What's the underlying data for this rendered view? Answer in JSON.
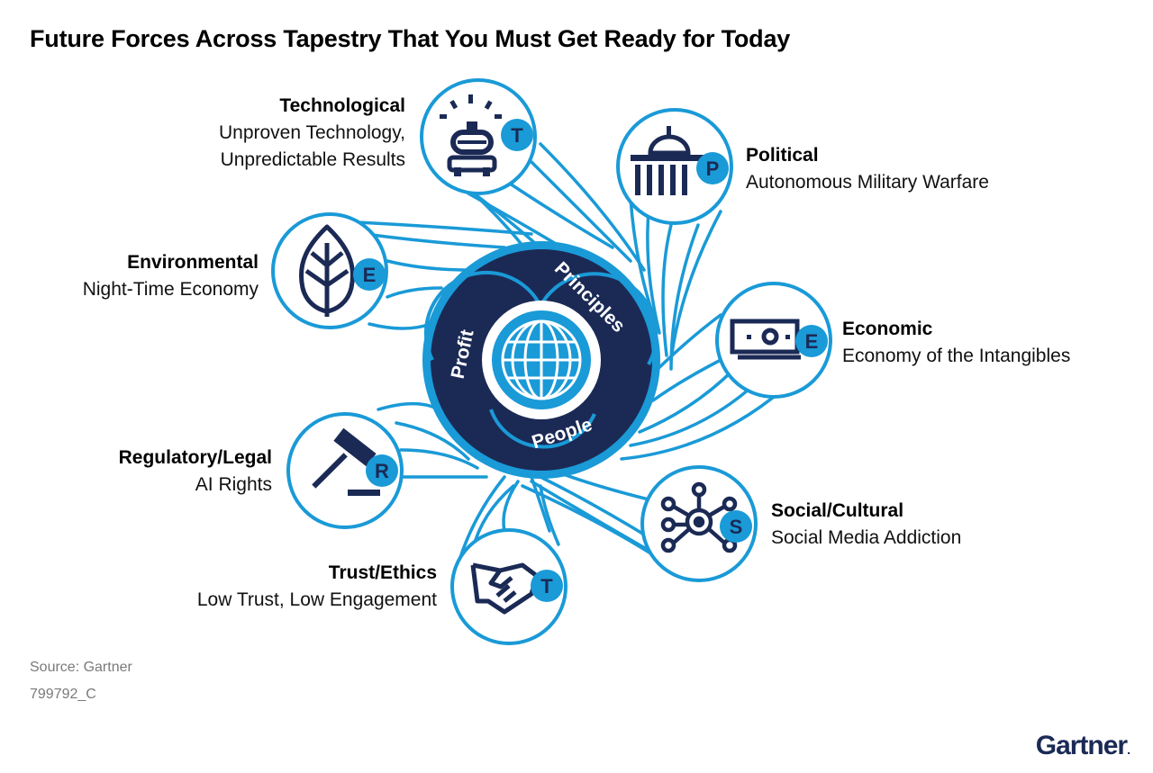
{
  "title": "Future Forces Across Tapestry That You Must Get Ready for Today",
  "core": {
    "segments": [
      "Principles",
      "Profit",
      "People"
    ]
  },
  "forces": [
    {
      "id": "technological",
      "letter": "T",
      "name": "Technological",
      "desc_lines": [
        "Unproven Technology,",
        "Unpredictable Results"
      ],
      "icon": "robot-icon"
    },
    {
      "id": "political",
      "letter": "P",
      "name": "Political",
      "desc_lines": [
        "Autonomous Military Warfare"
      ],
      "icon": "government-building-icon"
    },
    {
      "id": "environmental",
      "letter": "E",
      "name": "Environmental",
      "desc_lines": [
        "Night-Time Economy"
      ],
      "icon": "leaf-icon"
    },
    {
      "id": "economic",
      "letter": "E",
      "name": "Economic",
      "desc_lines": [
        "Economy of the Intangibles"
      ],
      "icon": "banknote-icon"
    },
    {
      "id": "regulatory",
      "letter": "R",
      "name": "Regulatory/Legal",
      "desc_lines": [
        "AI Rights"
      ],
      "icon": "gavel-icon"
    },
    {
      "id": "social",
      "letter": "S",
      "name": "Social/Cultural",
      "desc_lines": [
        "Social Media Addiction"
      ],
      "icon": "network-icon"
    },
    {
      "id": "trust",
      "letter": "T",
      "name": "Trust/Ethics",
      "desc_lines": [
        "Low Trust, Low Engagement"
      ],
      "icon": "handshake-icon"
    }
  ],
  "footer": {
    "source": "Source: Gartner",
    "doc_id": "799792_C",
    "logo_text": "Gartner",
    "logo_mark": "."
  },
  "colors": {
    "navy": "#1b2a55",
    "accent_blue": "#1a9ad7",
    "title": "#000000",
    "footer_grey": "#7a7a7a"
  }
}
